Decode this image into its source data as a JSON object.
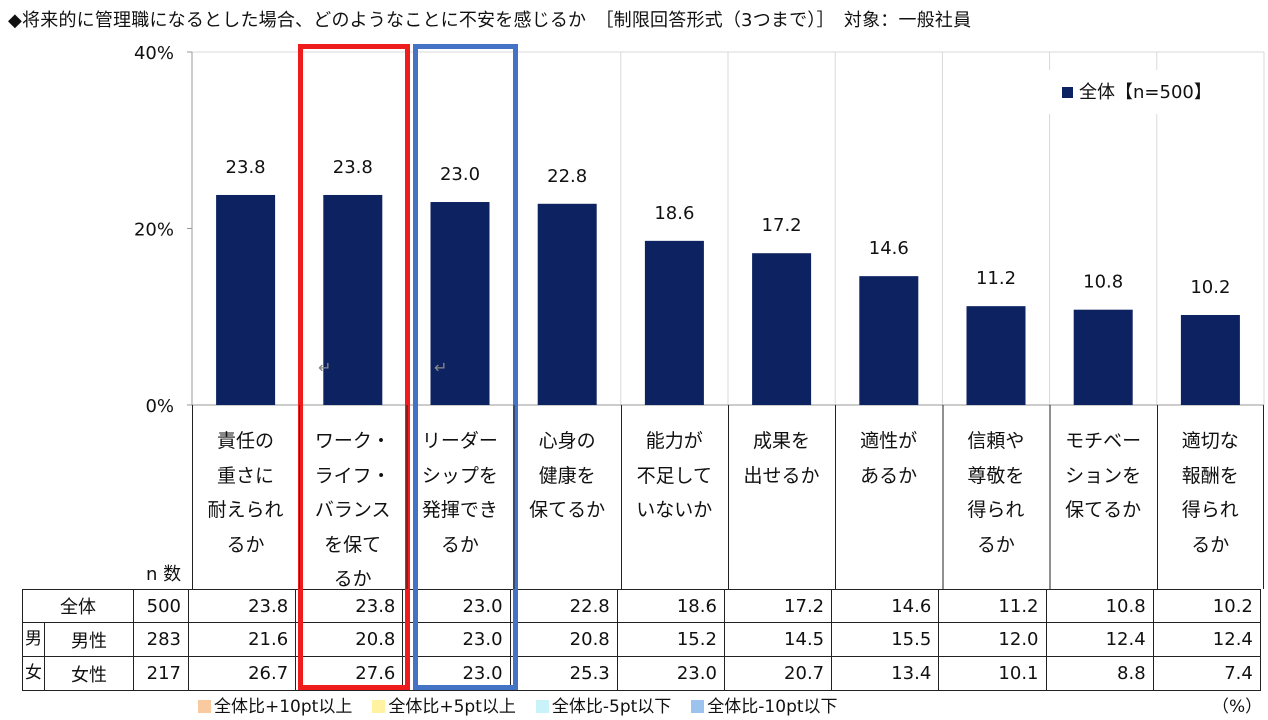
{
  "title": "◆将来的に管理職になるとした場合、どのようなことに不安を感じるか　［制限回答形式（3つまで）］　対象：一般社員",
  "chart_data": {
    "type": "bar",
    "title": "将来的に管理職になるとした場合、どのようなことに不安を感じるか",
    "categories": [
      "責任の\n重さに\n耐えられ\nるか",
      "ワーク・\nライフ・\nバランス\nを保て\nるか",
      "リーダー\nシップを\n発揮でき\nるか",
      "心身の\n健康を\n保てるか",
      "能力が\n不足して\nいないか",
      "成果を\n出せるか",
      "適性が\nあるか",
      "信頼や\n尊敬を\n得られ\nるか",
      "モチベー\nションを\n保てるか",
      "適切な\n報酬を\n得られ\nるか"
    ],
    "series": [
      {
        "name": "全体【n=500】",
        "values": [
          23.8,
          23.8,
          23.0,
          22.8,
          18.6,
          17.2,
          14.6,
          11.2,
          10.8,
          10.2
        ]
      }
    ],
    "value_labels": [
      "23.8",
      "23.8",
      "23.0",
      "22.8",
      "18.6",
      "17.2",
      "14.6",
      "11.2",
      "10.8",
      "10.2"
    ],
    "yticks": [
      "0%",
      "20%",
      "40%"
    ],
    "ylim": [
      0,
      40
    ],
    "bar_color": "#0d2260",
    "legend": "全体【n=500】",
    "legend_position": "top-right"
  },
  "table": {
    "n_header": "n 数",
    "group_label": [
      "男",
      "女"
    ],
    "rows": [
      {
        "label": "全体",
        "n": "500",
        "values": [
          "23.8",
          "23.8",
          "23.0",
          "22.8",
          "18.6",
          "17.2",
          "14.6",
          "11.2",
          "10.8",
          "10.2"
        ]
      },
      {
        "label": "男性",
        "n": "283",
        "values": [
          "21.6",
          "20.8",
          "23.0",
          "20.8",
          "15.2",
          "14.5",
          "15.5",
          "12.0",
          "12.4",
          "12.4"
        ]
      },
      {
        "label": "女性",
        "n": "217",
        "values": [
          "26.7",
          "27.6",
          "23.0",
          "25.3",
          "23.0",
          "20.7",
          "13.4",
          "10.1",
          "8.8",
          "7.4"
        ]
      }
    ]
  },
  "bottom_legend": [
    {
      "label": "全体比+10pt以上",
      "color": "#f9c9a0"
    },
    {
      "label": "全体比+5pt以上",
      "color": "#fff2a0"
    },
    {
      "label": "全体比-5pt以下",
      "color": "#c9f2f9"
    },
    {
      "label": "全体比-10pt以下",
      "color": "#9cc3ee"
    }
  ],
  "unit": "（%）",
  "return_mark": "↵",
  "highlight_colors": {
    "red": "#ee1c1c",
    "blue": "#4472c4"
  }
}
